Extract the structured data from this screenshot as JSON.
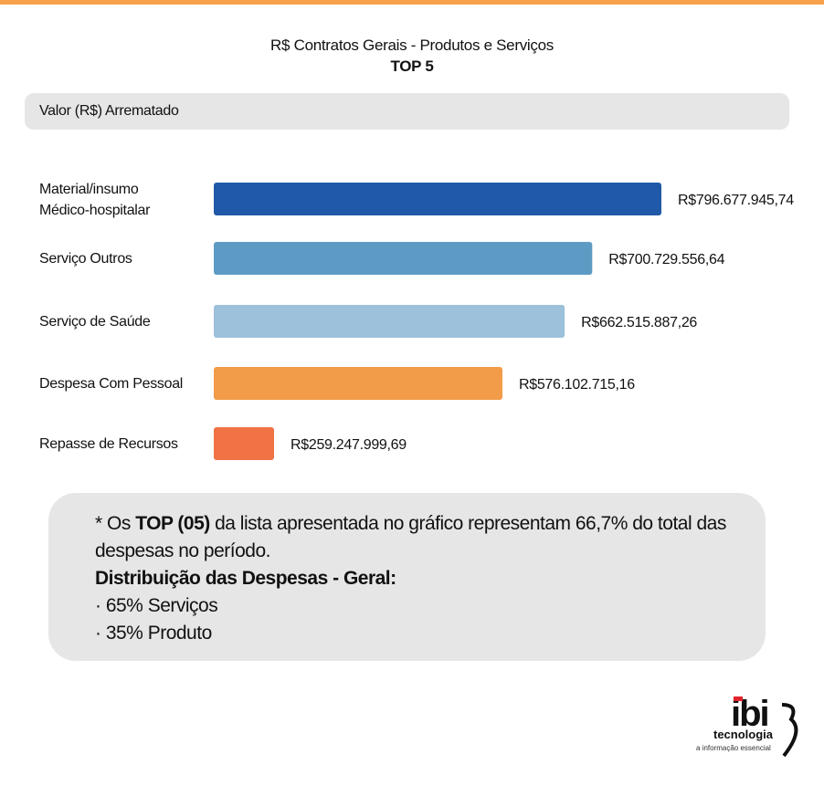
{
  "header": {
    "title": "R$ Contratos Gerais - Produtos e Serviços",
    "subtitle": "TOP 5"
  },
  "section_label": "Valor (R$) Arrematado",
  "chart_data": {
    "type": "bar",
    "orientation": "horizontal",
    "title": "R$ Contratos Gerais - Produtos e Serviços",
    "subtitle": "TOP 5",
    "xlabel": "Valor (R$) Arrematado",
    "categories": [
      [
        "Material/insumo",
        "Médico-hospitalar"
      ],
      [
        "Serviço Outros"
      ],
      [
        "Serviço de Saúde"
      ],
      [
        "Despesa Com Pessoal"
      ],
      [
        "Repasse de Recursos"
      ]
    ],
    "values": [
      796677945.74,
      700729556.64,
      662515887.26,
      576102715.16,
      259247999.69
    ],
    "value_labels": [
      "R$796.677.945,74",
      "R$700.729.556,64",
      "R$662.515.887,26",
      "R$576.102.715,16",
      "R$259.247.999,69"
    ],
    "colors": [
      "#1f59a7",
      "#5e9bc4",
      "#9dc1da",
      "#f29b48",
      "#f07245"
    ],
    "grid": false,
    "legend": "none"
  },
  "note": {
    "line1_prefix": "* Os ",
    "line1_bold": "TOP (05)",
    "line1_suffix": " da lista apresentada no gráfico representam 66,7% do total das",
    "line2": "despesas no período.",
    "heading": "Distribuição das Despesas - Geral:",
    "items": [
      "· 65% Serviços",
      "· 35% Produto"
    ]
  },
  "logo": {
    "name": "ibi",
    "tagline": "tecnologia",
    "slogan": "a informação essencial"
  }
}
